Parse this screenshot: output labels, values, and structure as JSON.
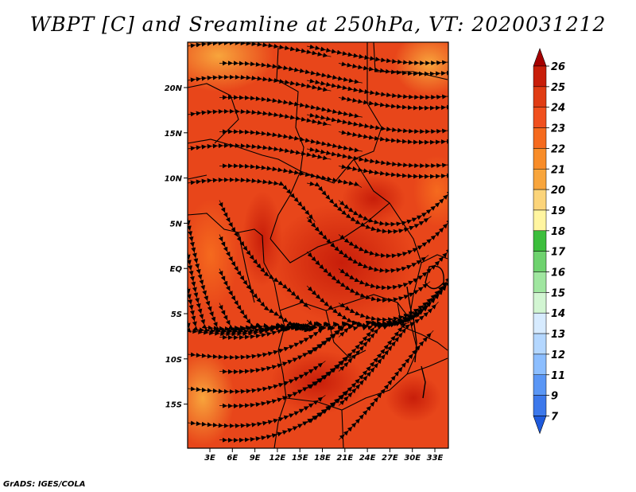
{
  "title": "WBPT [C] and Sreamline at 250hPa, VT: 2020031212",
  "credit": "GrADS: IGES/COLA",
  "map": {
    "lat_ticks": [
      "20N",
      "15N",
      "10N",
      "5N",
      "EQ",
      "5S",
      "10S",
      "15S"
    ],
    "lon_ticks": [
      "3E",
      "6E",
      "9E",
      "12E",
      "15E",
      "18E",
      "21E",
      "24E",
      "27E",
      "30E",
      "33E"
    ],
    "field": "WBPT",
    "level": "250hPa",
    "dominant_colors": [
      "#e03c14",
      "#f0501e",
      "#f56a1e",
      "#f8a53c",
      "#c81e0a"
    ]
  },
  "colorbar": {
    "labels": [
      "26",
      "25",
      "24",
      "23",
      "22",
      "21",
      "20",
      "19",
      "18",
      "17",
      "16",
      "15",
      "14",
      "13",
      "12",
      "11",
      "9",
      "7"
    ],
    "colors": [
      "#a50000",
      "#c81e0a",
      "#e03c14",
      "#f0501e",
      "#f56a1e",
      "#f88c28",
      "#f8a53c",
      "#fbd47a",
      "#fff5a0",
      "#3cbe3c",
      "#6ed26e",
      "#a0e6a0",
      "#d2f5d2",
      "#d7ebff",
      "#b4d7ff",
      "#8cbeff",
      "#5a96f5",
      "#3c78eb",
      "#1e5adc"
    ]
  }
}
